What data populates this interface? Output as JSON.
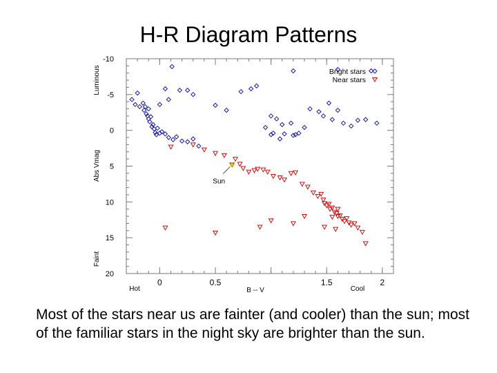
{
  "slide": {
    "title": "H-R Diagram Patterns",
    "caption": "Most of the stars near us are fainter (and cooler) than the sun; most of the familiar stars in the night sky are brighter than the sun."
  },
  "chart_data": {
    "type": "scatter",
    "xlabel": "B -- V",
    "ylabel": "Abs Vmag",
    "xlim": [
      -0.3,
      2.1
    ],
    "ylim": [
      20,
      -10
    ],
    "x_ticks": [
      0,
      0.5,
      1,
      1.5,
      2
    ],
    "x_tick_labels": [
      "0",
      "0.5",
      "",
      "1.5",
      "2"
    ],
    "y_ticks": [
      -10,
      -5,
      0,
      5,
      10,
      15,
      20
    ],
    "y_tick_labels": [
      "-10",
      "-5",
      "0",
      "5",
      "10",
      "15",
      "20"
    ],
    "x_end_labels": {
      "left": "Hot",
      "right": "Cool"
    },
    "y_end_labels": {
      "top": "Luminous",
      "bottom": "Faint"
    },
    "legend_position": "top-right",
    "annotation": {
      "text": "Sun",
      "x": 0.65,
      "y": 4.8
    },
    "series": [
      {
        "name": "Bright stars",
        "color": "#1a1aaa",
        "marker": "diamond",
        "points": [
          [
            -0.25,
            -4.3
          ],
          [
            -0.2,
            -5.2
          ],
          [
            -0.15,
            -3.8
          ],
          [
            -0.18,
            -3.3
          ],
          [
            -0.22,
            -3.6
          ],
          [
            -0.1,
            -3.0
          ],
          [
            -0.14,
            -2.8
          ],
          [
            -0.13,
            -3.3
          ],
          [
            -0.12,
            -2.3
          ],
          [
            -0.11,
            -2.0
          ],
          [
            -0.1,
            -1.6
          ],
          [
            -0.09,
            -1.2
          ],
          [
            -0.08,
            -1.9
          ],
          [
            -0.07,
            -0.5
          ],
          [
            -0.06,
            -0.8
          ],
          [
            -0.05,
            -0.2
          ],
          [
            -0.04,
            0.3
          ],
          [
            -0.03,
            0.6
          ],
          [
            -0.02,
            -0.3
          ],
          [
            0.0,
            0.4
          ],
          [
            0.02,
            0.2
          ],
          [
            0.05,
            0.5
          ],
          [
            0.08,
            1.0
          ],
          [
            0.12,
            1.3
          ],
          [
            0.15,
            0.9
          ],
          [
            0.2,
            1.5
          ],
          [
            0.25,
            1.6
          ],
          [
            0.3,
            1.2
          ],
          [
            0.35,
            2.2
          ],
          [
            0.18,
            -5.6
          ],
          [
            0.25,
            -5.6
          ],
          [
            0.3,
            -5.0
          ],
          [
            0.08,
            -4.3
          ],
          [
            0.05,
            -5.8
          ],
          [
            0.11,
            -8.9
          ],
          [
            0.0,
            -3.6
          ],
          [
            0.5,
            -3.5
          ],
          [
            0.6,
            -2.8
          ],
          [
            0.82,
            -5.8
          ],
          [
            0.87,
            -6.2
          ],
          [
            0.73,
            -5.4
          ],
          [
            1.2,
            -8.3
          ],
          [
            1.6,
            -8.5
          ],
          [
            1.9,
            -8.3
          ],
          [
            1.35,
            -3.0
          ],
          [
            1.43,
            -2.6
          ],
          [
            1.47,
            -2.0
          ],
          [
            1.52,
            -3.8
          ],
          [
            1.55,
            -1.5
          ],
          [
            1.6,
            -2.8
          ],
          [
            1.65,
            -1.0
          ],
          [
            1.72,
            -0.6
          ],
          [
            1.78,
            -1.4
          ],
          [
            1.85,
            -1.5
          ],
          [
            1.95,
            -1.0
          ],
          [
            1.0,
            -2.0
          ],
          [
            1.05,
            -1.6
          ],
          [
            1.1,
            -0.8
          ],
          [
            1.18,
            -1.0
          ],
          [
            1.25,
            0.4
          ],
          [
            1.3,
            -0.4
          ],
          [
            0.95,
            -0.4
          ],
          [
            1.0,
            0.6
          ],
          [
            1.12,
            0.5
          ],
          [
            1.2,
            0.7
          ],
          [
            1.22,
            0.6
          ],
          [
            1.08,
            1.2
          ],
          [
            1.02,
            0.4
          ]
        ]
      },
      {
        "name": "Near stars",
        "color": "#cc1111",
        "marker": "triangle",
        "points": [
          [
            0.65,
            4.8
          ],
          [
            0.58,
            3.5
          ],
          [
            0.68,
            4.0
          ],
          [
            0.72,
            4.7
          ],
          [
            0.75,
            5.3
          ],
          [
            0.8,
            5.8
          ],
          [
            0.85,
            5.6
          ],
          [
            0.88,
            5.4
          ],
          [
            0.93,
            5.5
          ],
          [
            0.97,
            5.8
          ],
          [
            1.02,
            6.4
          ],
          [
            1.08,
            6.6
          ],
          [
            1.12,
            6.9
          ],
          [
            1.18,
            6.0
          ],
          [
            1.22,
            5.9
          ],
          [
            1.28,
            7.5
          ],
          [
            1.33,
            7.9
          ],
          [
            1.38,
            8.7
          ],
          [
            1.42,
            9.2
          ],
          [
            1.45,
            8.9
          ],
          [
            1.47,
            9.7
          ],
          [
            1.48,
            10.2
          ],
          [
            1.5,
            10.5
          ],
          [
            1.52,
            10.3
          ],
          [
            1.53,
            11.0
          ],
          [
            1.55,
            10.8
          ],
          [
            1.57,
            11.4
          ],
          [
            1.59,
            11.6
          ],
          [
            1.6,
            12.0
          ],
          [
            1.62,
            11.9
          ],
          [
            1.64,
            12.4
          ],
          [
            1.66,
            12.7
          ],
          [
            1.68,
            12.3
          ],
          [
            1.7,
            12.9
          ],
          [
            1.72,
            13.2
          ],
          [
            1.75,
            13.0
          ],
          [
            1.78,
            13.6
          ],
          [
            1.82,
            14.2
          ],
          [
            1.85,
            15.8
          ],
          [
            1.6,
            11.0
          ],
          [
            1.55,
            12.1
          ],
          [
            1.48,
            13.5
          ],
          [
            1.58,
            13.8
          ],
          [
            1.3,
            12.0
          ],
          [
            1.2,
            13.0
          ],
          [
            0.9,
            13.5
          ],
          [
            1.0,
            12.6
          ],
          [
            0.5,
            14.3
          ],
          [
            0.05,
            13.6
          ],
          [
            0.4,
            2.7
          ],
          [
            0.3,
            2.0
          ],
          [
            0.1,
            2.3
          ],
          [
            0.5,
            3.2
          ]
        ]
      }
    ]
  }
}
